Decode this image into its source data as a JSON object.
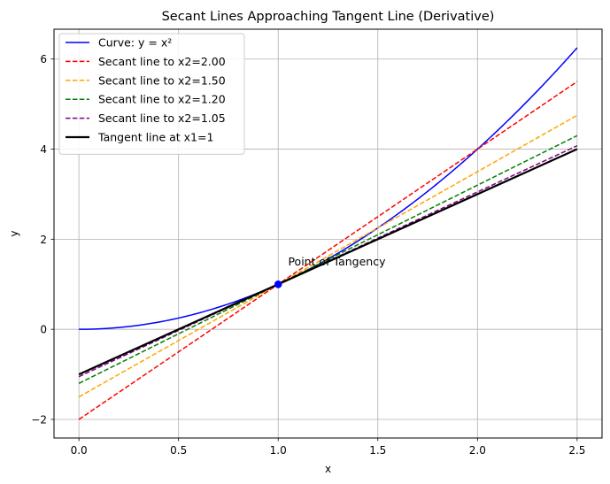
{
  "chart_data": {
    "type": "line",
    "title": "Secant Lines Approaching Tangent Line (Derivative)",
    "xlabel": "x",
    "ylabel": "y",
    "xlim": [
      -0.125,
      2.625
    ],
    "ylim": [
      -2.4125,
      6.6625
    ],
    "xticks": [
      0.0,
      0.5,
      1.0,
      1.5,
      2.0,
      2.5
    ],
    "xtick_labels": [
      "0.0",
      "0.5",
      "1.0",
      "1.5",
      "2.0",
      "2.5"
    ],
    "yticks": [
      -2,
      0,
      2,
      4,
      6
    ],
    "ytick_labels": [
      "−2",
      "0",
      "2",
      "4",
      "6"
    ],
    "grid": true,
    "legend_position": "top-left",
    "series": [
      {
        "name": "Curve: y = x²",
        "color": "#0000ff",
        "style": "solid",
        "x": [
          0.0,
          0.25,
          0.5,
          0.75,
          1.0,
          1.25,
          1.5,
          1.75,
          2.0,
          2.25,
          2.5
        ],
        "y": [
          0.0,
          0.0625,
          0.25,
          0.5625,
          1.0,
          1.5625,
          2.25,
          3.0625,
          4.0,
          5.0625,
          6.25
        ]
      },
      {
        "name": "Secant line to x2=2.00",
        "color": "#ff0000",
        "style": "dashed",
        "x": [
          0.0,
          2.5
        ],
        "y": [
          -2.0,
          5.5
        ]
      },
      {
        "name": "Secant line to x2=1.50",
        "color": "#ffa500",
        "style": "dashed",
        "x": [
          0.0,
          2.5
        ],
        "y": [
          -1.5,
          4.75
        ]
      },
      {
        "name": "Secant line to x2=1.20",
        "color": "#008000",
        "style": "dashed",
        "x": [
          0.0,
          2.5
        ],
        "y": [
          -1.2,
          4.3
        ]
      },
      {
        "name": "Secant line to x2=1.05",
        "color": "#800080",
        "style": "dashed",
        "x": [
          0.0,
          2.5
        ],
        "y": [
          -1.05,
          4.075
        ]
      },
      {
        "name": "Tangent line at x1=1",
        "color": "#000000",
        "style": "solid-thick",
        "x": [
          0.0,
          2.5
        ],
        "y": [
          -1.0,
          4.0
        ]
      }
    ],
    "point": {
      "x": 1.0,
      "y": 1.0,
      "color": "#0000ff"
    },
    "annotation": {
      "text": "Point of Tangency",
      "x": 1.05,
      "y": 1.5
    }
  }
}
